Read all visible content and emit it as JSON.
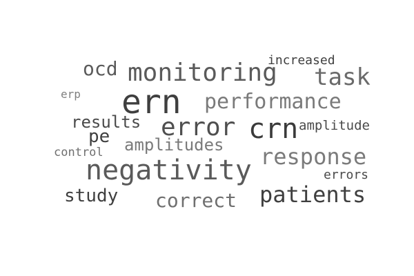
{
  "word_cloud": {
    "words": {
      "ern": "ern",
      "negativity": "negativity",
      "monitoring": "monitoring",
      "error": "error",
      "crn": "crn",
      "performance": "performance",
      "task": "task",
      "response": "response",
      "patients": "patients",
      "correct": "correct",
      "study": "study",
      "amplitudes": "amplitudes",
      "results": "results",
      "pe": "pe",
      "ocd": "ocd",
      "increased": "increased",
      "amplitude": "amplitude",
      "errors": "errors",
      "erp": "erp",
      "control": "control"
    }
  }
}
